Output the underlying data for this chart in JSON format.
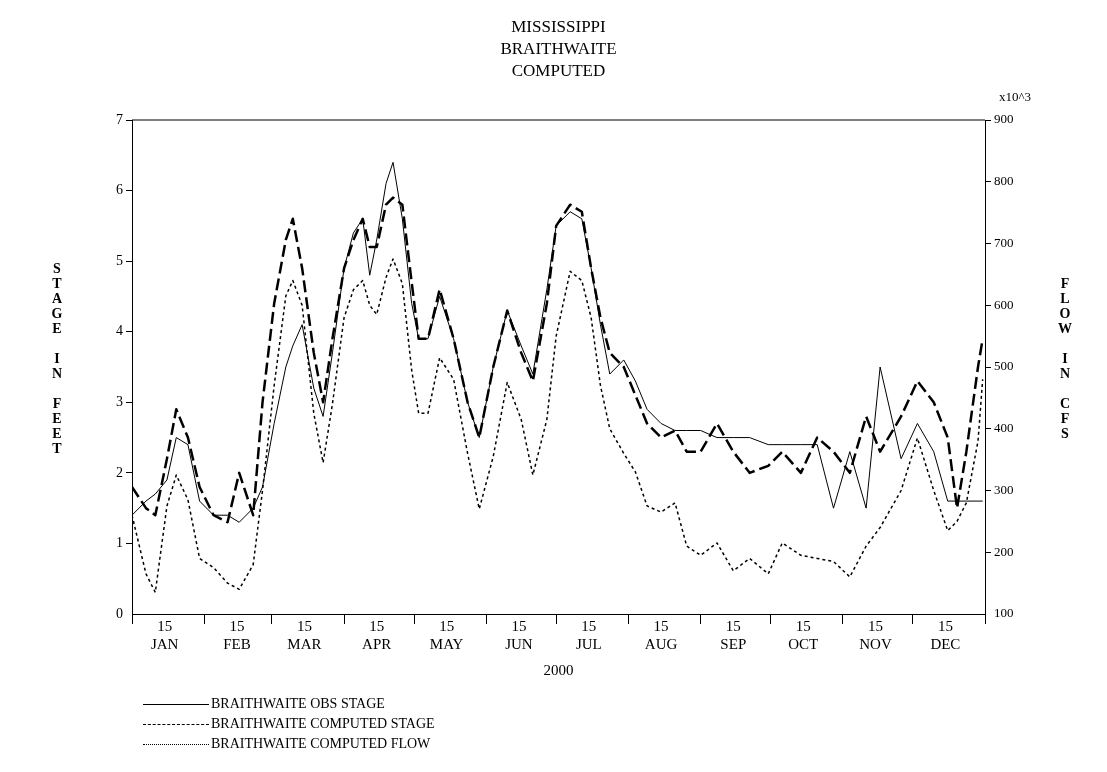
{
  "chart_data": {
    "type": "line",
    "title": "MISSISSIPPI\nBRAITHWAITE\nCOMPUTED",
    "xlabel": "2000",
    "ylabel": "STAGE IN FEET",
    "y2label": "FLOW IN CFS",
    "annotations": [
      "x10^3"
    ],
    "x": [
      "2000-01-01",
      "2000-01-07",
      "2000-01-11",
      "2000-01-16",
      "2000-01-20",
      "2000-01-25",
      "2000-01-30",
      "2000-02-05",
      "2000-02-11",
      "2000-02-16",
      "2000-02-22",
      "2000-02-26",
      "2000-03-02",
      "2000-03-07",
      "2000-03-10",
      "2000-03-14",
      "2000-03-19",
      "2000-03-23",
      "2000-03-27",
      "2000-04-01",
      "2000-04-05",
      "2000-04-09",
      "2000-04-12",
      "2000-04-15",
      "2000-04-19",
      "2000-04-22",
      "2000-04-26",
      "2000-04-30",
      "2000-05-03",
      "2000-05-07",
      "2000-05-12",
      "2000-05-18",
      "2000-05-24",
      "2000-05-29",
      "2000-06-04",
      "2000-06-10",
      "2000-06-16",
      "2000-06-21",
      "2000-06-27",
      "2000-07-01",
      "2000-07-07",
      "2000-07-12",
      "2000-07-16",
      "2000-07-20",
      "2000-07-24",
      "2000-07-30",
      "2000-08-04",
      "2000-08-09",
      "2000-08-15",
      "2000-08-21",
      "2000-08-26",
      "2000-09-01",
      "2000-09-08",
      "2000-09-15",
      "2000-09-22",
      "2000-09-30",
      "2000-10-06",
      "2000-10-14",
      "2000-10-21",
      "2000-10-28",
      "2000-11-04",
      "2000-11-11",
      "2000-11-17",
      "2000-11-26",
      "2000-12-03",
      "2000-12-10",
      "2000-12-16",
      "2000-12-20",
      "2000-12-24",
      "2000-12-29",
      "2000-12-31"
    ],
    "series": [
      {
        "name": "BRAITHWAITE OBS STAGE",
        "color": "#000000",
        "line_style": "solid",
        "values": [
          1.4,
          1.6,
          1.7,
          1.9,
          2.5,
          2.4,
          1.6,
          1.4,
          1.4,
          1.3,
          1.5,
          1.8,
          2.7,
          3.5,
          3.8,
          4.1,
          3.2,
          2.8,
          3.7,
          4.9,
          5.4,
          5.6,
          4.8,
          5.3,
          6.1,
          6.4,
          5.6,
          4.4,
          3.9,
          3.9,
          4.5,
          3.9,
          3.0,
          2.5,
          3.5,
          4.3,
          3.8,
          3.4,
          4.6,
          5.5,
          5.7,
          5.6,
          4.9,
          4.1,
          3.4,
          3.6,
          3.3,
          2.9,
          2.7,
          2.6,
          2.6,
          2.6,
          2.5,
          2.5,
          2.5,
          2.4,
          2.4,
          2.4,
          2.4,
          1.5,
          2.3,
          1.5,
          3.5,
          2.2,
          2.7,
          2.3,
          1.6,
          1.6,
          1.6,
          1.6,
          1.6
        ]
      },
      {
        "name": "BRAITHWAITE COMPUTED STAGE",
        "color": "#000000",
        "line_style": "dashed",
        "values": [
          1.8,
          1.5,
          1.4,
          2.2,
          2.9,
          2.5,
          1.8,
          1.4,
          1.3,
          2.0,
          1.4,
          3.0,
          4.4,
          5.3,
          5.6,
          4.9,
          3.7,
          3.0,
          3.9,
          4.9,
          5.3,
          5.6,
          5.2,
          5.2,
          5.8,
          5.9,
          5.8,
          4.7,
          3.9,
          3.9,
          4.6,
          3.9,
          3.0,
          2.5,
          3.5,
          4.3,
          3.7,
          3.3,
          4.4,
          5.5,
          5.8,
          5.7,
          4.9,
          4.2,
          3.7,
          3.5,
          3.1,
          2.7,
          2.5,
          2.6,
          2.3,
          2.3,
          2.7,
          2.3,
          2.0,
          2.1,
          2.3,
          2.0,
          2.5,
          2.3,
          2.0,
          2.8,
          2.3,
          2.8,
          3.3,
          3.0,
          2.5,
          1.5,
          2.3,
          3.5,
          3.9
        ]
      },
      {
        "name": "BRAITHWAITE COMPUTED FLOW",
        "color": "#000000",
        "line_style": "dotted",
        "axis": "y2",
        "values": [
          260,
          165,
          135,
          275,
          325,
          285,
          190,
          175,
          150,
          140,
          180,
          300,
          470,
          615,
          640,
          600,
          425,
          345,
          440,
          580,
          625,
          640,
          600,
          585,
          645,
          675,
          635,
          495,
          425,
          425,
          515,
          480,
          360,
          270,
          355,
          475,
          415,
          325,
          415,
          550,
          655,
          640,
          580,
          470,
          400,
          360,
          330,
          275,
          265,
          280,
          210,
          195,
          215,
          170,
          190,
          165,
          215,
          195,
          190,
          185,
          160,
          210,
          240,
          300,
          385,
          300,
          235,
          250,
          280,
          380,
          480
        ]
      }
    ],
    "xlim": [
      "2000-01-01",
      "2001-01-01"
    ],
    "xticks": [
      {
        "value": "2000-01-01",
        "label": null
      },
      {
        "value": "2000-01-15",
        "label": "15\nJAN"
      },
      {
        "value": "2000-02-01",
        "label": null
      },
      {
        "value": "2000-02-15",
        "label": "15\nFEB"
      },
      {
        "value": "2000-03-01",
        "label": null
      },
      {
        "value": "2000-03-15",
        "label": "15\nMAR"
      },
      {
        "value": "2000-04-01",
        "label": null
      },
      {
        "value": "2000-04-15",
        "label": "15\nAPR"
      },
      {
        "value": "2000-05-01",
        "label": null
      },
      {
        "value": "2000-05-15",
        "label": "15\nMAY"
      },
      {
        "value": "2000-06-01",
        "label": null
      },
      {
        "value": "2000-06-15",
        "label": "15\nJUN"
      },
      {
        "value": "2000-07-01",
        "label": null
      },
      {
        "value": "2000-07-15",
        "label": "15\nJUL"
      },
      {
        "value": "2000-08-01",
        "label": null
      },
      {
        "value": "2000-08-15",
        "label": "15\nAUG"
      },
      {
        "value": "2000-09-01",
        "label": null
      },
      {
        "value": "2000-09-15",
        "label": "15\nSEP"
      },
      {
        "value": "2000-10-01",
        "label": null
      },
      {
        "value": "2000-10-15",
        "label": "15\nOCT"
      },
      {
        "value": "2000-11-01",
        "label": null
      },
      {
        "value": "2000-11-15",
        "label": "15\nNOV"
      },
      {
        "value": "2000-12-01",
        "label": null
      },
      {
        "value": "2000-12-15",
        "label": "15\nDEC"
      },
      {
        "value": "2001-01-01",
        "label": null
      }
    ],
    "ylim": [
      0,
      7
    ],
    "yticks": [
      0,
      1,
      2,
      3,
      4,
      5,
      6,
      7
    ],
    "y2lim": [
      100,
      900
    ],
    "y2ticks": [
      100,
      200,
      300,
      400,
      500,
      600,
      700,
      800,
      900
    ],
    "grid": false,
    "legend": "bottom left",
    "marker": "none"
  }
}
